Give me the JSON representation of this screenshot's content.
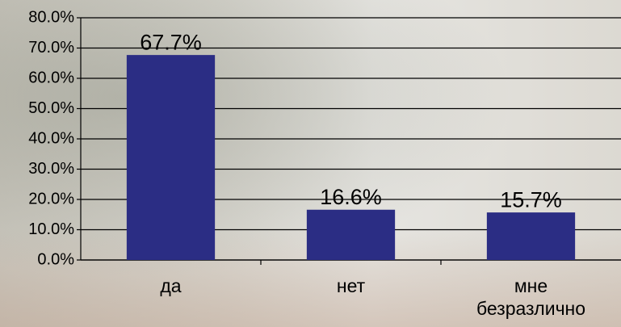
{
  "chart_data": {
    "type": "bar",
    "categories": [
      "да",
      "нет",
      "мне безразлично"
    ],
    "values": [
      67.7,
      16.6,
      15.7
    ],
    "value_labels": [
      "67.7%",
      "16.6%",
      "15.7%"
    ],
    "color": "#2b2d84",
    "ylim": [
      0,
      80
    ],
    "yticks": [
      {
        "value": 0,
        "label": "0.0%"
      },
      {
        "value": 10,
        "label": "10.0%"
      },
      {
        "value": 20,
        "label": "20.0%"
      },
      {
        "value": 30,
        "label": "30.0%"
      },
      {
        "value": 40,
        "label": "40.0%"
      },
      {
        "value": 50,
        "label": "50.0%"
      },
      {
        "value": 60,
        "label": "60.0%"
      },
      {
        "value": 70,
        "label": "70.0%"
      },
      {
        "value": 80,
        "label": "80.0%"
      }
    ],
    "grid": true
  }
}
